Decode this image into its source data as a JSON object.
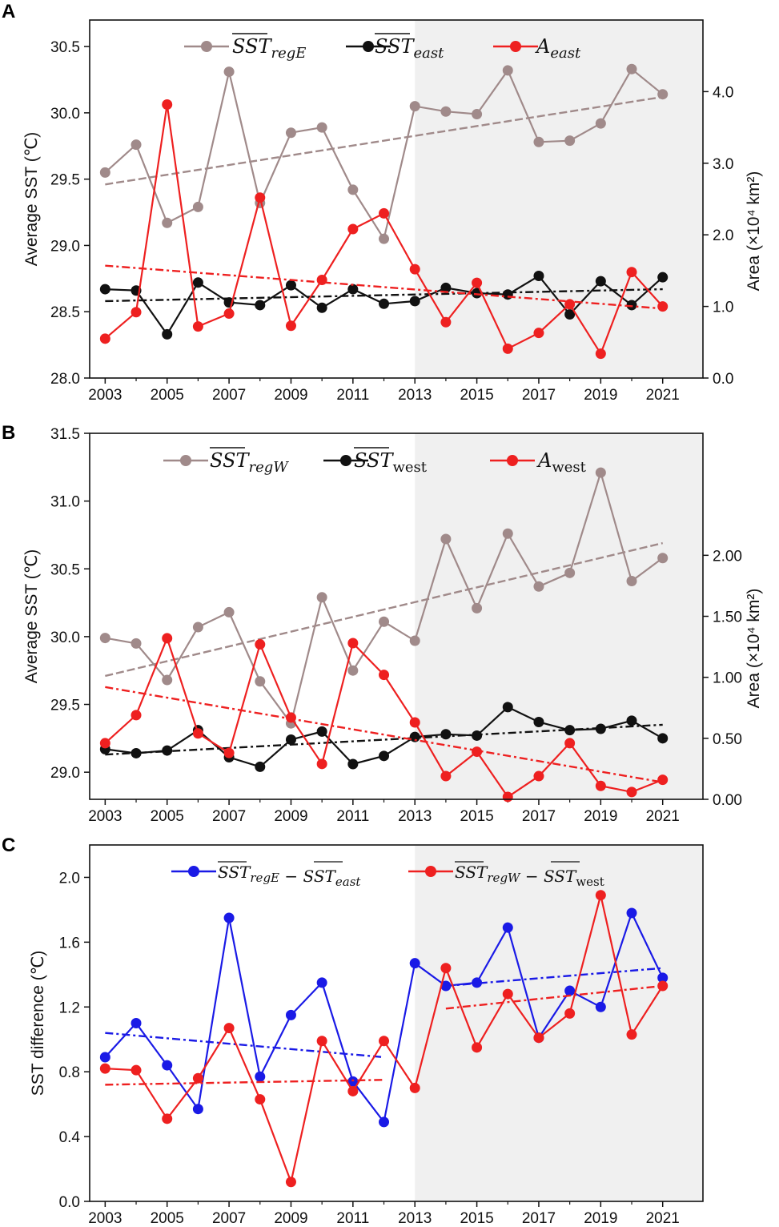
{
  "chart_data": [
    {
      "type": "line",
      "panel": "A",
      "x": [
        2003,
        2004,
        2005,
        2006,
        2007,
        2008,
        2009,
        2010,
        2011,
        2012,
        2013,
        2014,
        2015,
        2016,
        2017,
        2018,
        2019,
        2020,
        2021
      ],
      "x_ticks": [
        "2003",
        "2005",
        "2007",
        "2009",
        "2011",
        "2013",
        "2015",
        "2017",
        "2019",
        "2021"
      ],
      "ylabel_left": "Average SST (℃)",
      "ylim_left": [
        28.0,
        30.7
      ],
      "yticks_left": [
        "28.0",
        "28.5",
        "29.0",
        "29.5",
        "30.0",
        "30.5"
      ],
      "ylabel_right": "Area (×10⁴ km²)",
      "ylim_right": [
        0.0,
        5.0
      ],
      "yticks_right": [
        "0.0",
        "1.0",
        "2.0",
        "3.0",
        "4.0"
      ],
      "shaded_from": 2013,
      "legend": [
        {
          "symbol": "SST",
          "sub": "regE",
          "color": "#a08a8a"
        },
        {
          "symbol": "SST",
          "sub": "east",
          "color": "#111111"
        },
        {
          "symbol": "A",
          "sub": "east",
          "color": "#ee2020"
        }
      ],
      "series": [
        {
          "name": "SST_regE",
          "axis": "left",
          "color": "#a08a8a",
          "values": [
            29.55,
            29.76,
            29.17,
            29.29,
            30.31,
            29.32,
            29.85,
            29.89,
            29.42,
            29.05,
            30.05,
            30.01,
            29.99,
            30.32,
            29.78,
            29.79,
            29.92,
            30.33,
            30.14
          ],
          "trend": [
            29.46,
            30.12
          ]
        },
        {
          "name": "SST_east",
          "axis": "left",
          "color": "#111111",
          "values": [
            28.67,
            28.66,
            28.33,
            28.72,
            28.57,
            28.55,
            28.7,
            28.53,
            28.67,
            28.56,
            28.58,
            28.68,
            28.64,
            28.63,
            28.77,
            28.48,
            28.73,
            28.55,
            28.76
          ],
          "trend": [
            28.58,
            28.67
          ]
        },
        {
          "name": "A_east",
          "axis": "right",
          "color": "#ee2020",
          "values": [
            0.55,
            0.92,
            3.82,
            0.72,
            0.9,
            2.52,
            0.73,
            1.37,
            2.08,
            2.3,
            1.52,
            0.78,
            1.33,
            0.41,
            0.63,
            1.03,
            0.34,
            1.48,
            1.0
          ],
          "trend": [
            1.57,
            0.97
          ]
        }
      ]
    },
    {
      "type": "line",
      "panel": "B",
      "x": [
        2003,
        2004,
        2005,
        2006,
        2007,
        2008,
        2009,
        2010,
        2011,
        2012,
        2013,
        2014,
        2015,
        2016,
        2017,
        2018,
        2019,
        2020,
        2021
      ],
      "x_ticks": [
        "2003",
        "2005",
        "2007",
        "2009",
        "2011",
        "2013",
        "2015",
        "2017",
        "2019",
        "2021"
      ],
      "ylabel_left": "Average SST (℃)",
      "ylim_left": [
        28.8,
        31.5
      ],
      "yticks_left": [
        "29.0",
        "29.5",
        "30.0",
        "30.5",
        "31.0",
        "31.5"
      ],
      "ylabel_right": "Area (×10⁴ km²)",
      "ylim_right": [
        0.0,
        3.0
      ],
      "yticks_right": [
        "0.00",
        "0.50",
        "1.00",
        "1.50",
        "2.00"
      ],
      "shaded_from": 2013,
      "legend": [
        {
          "symbol": "SST",
          "sub": "regW",
          "color": "#a08a8a"
        },
        {
          "symbol": "SST",
          "sub": "west",
          "color": "#111111"
        },
        {
          "symbol": "A",
          "sub": "west",
          "color": "#ee2020"
        }
      ],
      "series": [
        {
          "name": "SST_regW",
          "axis": "left",
          "color": "#a08a8a",
          "values": [
            29.99,
            29.95,
            29.68,
            30.07,
            30.18,
            29.67,
            29.36,
            30.29,
            29.75,
            30.11,
            29.97,
            30.72,
            30.21,
            30.76,
            30.37,
            30.47,
            31.21,
            30.41,
            30.58
          ],
          "trend": [
            29.71,
            30.69
          ]
        },
        {
          "name": "SST_west",
          "axis": "left",
          "color": "#111111",
          "values": [
            29.17,
            29.14,
            29.16,
            29.31,
            29.11,
            29.04,
            29.24,
            29.3,
            29.06,
            29.12,
            29.26,
            29.28,
            29.27,
            29.48,
            29.37,
            29.31,
            29.32,
            29.38,
            29.25
          ],
          "trend": [
            29.13,
            29.35
          ]
        },
        {
          "name": "A_west",
          "axis": "right",
          "color": "#ee2020",
          "values": [
            0.46,
            0.69,
            1.32,
            0.54,
            0.38,
            1.27,
            0.67,
            0.29,
            1.28,
            1.02,
            0.63,
            0.19,
            0.39,
            0.02,
            0.19,
            0.46,
            0.11,
            0.06,
            0.16
          ],
          "trend": [
            0.92,
            0.14
          ]
        }
      ]
    },
    {
      "type": "line",
      "panel": "C",
      "x": [
        2003,
        2004,
        2005,
        2006,
        2007,
        2008,
        2009,
        2010,
        2011,
        2012,
        2013,
        2014,
        2015,
        2016,
        2017,
        2018,
        2019,
        2020,
        2021
      ],
      "x_ticks": [
        "2003",
        "2005",
        "2007",
        "2009",
        "2011",
        "2013",
        "2015",
        "2017",
        "2019",
        "2021"
      ],
      "ylabel": "SST difference (℃)",
      "ylim": [
        0.0,
        2.2
      ],
      "yticks": [
        "0.0",
        "0.4",
        "0.8",
        "1.2",
        "1.6",
        "2.0"
      ],
      "shaded_from": 2013,
      "legend": [
        {
          "label": "SST_regE − SST_east",
          "color": "#1a1ae6"
        },
        {
          "label": "SST_regW − SST_west",
          "color": "#ee2020"
        }
      ],
      "series": [
        {
          "name": "SST_regE - SST_east",
          "color": "#1a1ae6",
          "values": [
            0.89,
            1.1,
            0.84,
            0.57,
            1.75,
            0.77,
            1.15,
            1.35,
            0.74,
            0.49,
            1.47,
            1.33,
            1.35,
            1.69,
            1.01,
            1.3,
            1.2,
            1.78,
            1.38
          ],
          "trends": [
            {
              "from": 2003,
              "to": 2012,
              "y0": 1.04,
              "y1": 0.89
            },
            {
              "from": 2014,
              "to": 2021,
              "y0": 1.33,
              "y1": 1.44
            }
          ]
        },
        {
          "name": "SST_regW - SST_west",
          "color": "#ee2020",
          "values": [
            0.82,
            0.81,
            0.51,
            0.76,
            1.07,
            0.63,
            0.12,
            0.99,
            0.68,
            0.99,
            0.7,
            1.44,
            0.95,
            1.28,
            1.01,
            1.16,
            1.89,
            1.03,
            1.33
          ],
          "trends": [
            {
              "from": 2003,
              "to": 2012,
              "y0": 0.72,
              "y1": 0.75
            },
            {
              "from": 2014,
              "to": 2021,
              "y0": 1.19,
              "y1": 1.33
            }
          ]
        }
      ]
    }
  ]
}
